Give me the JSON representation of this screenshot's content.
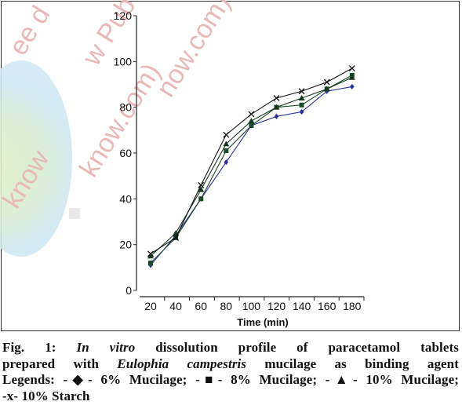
{
  "watermark": {
    "lines": [
      "ee d",
      "w Pub",
      "now.com).",
      "know.com)",
      "know"
    ]
  },
  "caption": {
    "fig": "Fig. 1: ",
    "in_vitro": "In vitro",
    "line1_rest": " dissolution profile of paracetamol tablets",
    "line2_pre": "prepared with ",
    "species": "Eulophia campestris",
    "line2_post": " mucilage as binding agent",
    "line3": "Legends: -◆- 6% Mucilage; -■- 8% Mucilage; -▲- 10% Mucilage;",
    "line4": "-x- 10% Starch"
  },
  "chart_data": {
    "type": "line",
    "xlabel": "Time (min)",
    "ylabel": "",
    "x": [
      20,
      40,
      60,
      80,
      100,
      120,
      140,
      160,
      180
    ],
    "xticks": [
      "20",
      "40",
      "60",
      "80",
      "100",
      "120",
      "140",
      "160",
      "180"
    ],
    "yticks": [
      "0",
      "20",
      "40",
      "60",
      "80",
      "100",
      "120"
    ],
    "ylim": [
      0,
      120
    ],
    "series": [
      {
        "name": "6% Mucilage",
        "marker": "diamond",
        "color": "#2b2f9e",
        "values": [
          11,
          24,
          40,
          56,
          72,
          76,
          78,
          87,
          89
        ]
      },
      {
        "name": "8% Mucilage",
        "marker": "square",
        "color": "#1b4a2a",
        "values": [
          12,
          23,
          40,
          61,
          72,
          80,
          81,
          88,
          94
        ]
      },
      {
        "name": "10% Mucilage",
        "marker": "triangle",
        "color": "#163a20",
        "values": [
          15,
          25,
          44,
          64,
          74,
          80,
          84,
          88,
          93
        ]
      },
      {
        "name": "10% Starch",
        "marker": "x",
        "color": "#111111",
        "values": [
          16,
          23,
          46,
          68,
          77,
          84,
          87,
          91,
          97
        ]
      }
    ]
  }
}
